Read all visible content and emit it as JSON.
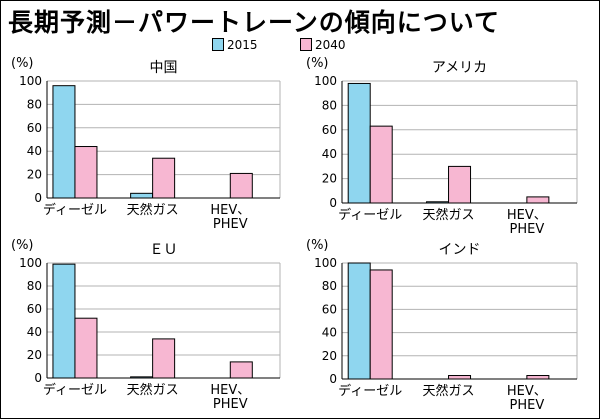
{
  "title": "長期予測－パワートレーンの傾向について",
  "legend": [
    {
      "label": "2015",
      "color": "#8fd6ef"
    },
    {
      "label": "2040",
      "color": "#f7b7d2"
    }
  ],
  "colors": {
    "s2015": "#8fd6ef",
    "s2040": "#f7b7d2",
    "grid": "#b3b3b3",
    "axis": "#000000"
  },
  "chart_data": [
    {
      "type": "bar",
      "title": "中国",
      "ylabel": "(%)",
      "ylim": [
        0,
        100
      ],
      "yticks": [
        0,
        20,
        40,
        60,
        80,
        100
      ],
      "categories": [
        "ディーゼル",
        "天然ガス",
        "HEV、PHEV"
      ],
      "category_lines": [
        [
          "ディーゼル"
        ],
        [
          "天然ガス"
        ],
        [
          "HEV、",
          "PHEV"
        ]
      ],
      "series": [
        {
          "name": "2015",
          "values": [
            96,
            4,
            0
          ]
        },
        {
          "name": "2040",
          "values": [
            44,
            34,
            21
          ]
        }
      ]
    },
    {
      "type": "bar",
      "title": "アメリカ",
      "ylabel": "(%)",
      "ylim": [
        0,
        100
      ],
      "yticks": [
        0,
        20,
        40,
        60,
        80,
        100
      ],
      "categories": [
        "ディーゼル",
        "天然ガス",
        "HEV、PHEV"
      ],
      "category_lines": [
        [
          "ディーゼル"
        ],
        [
          "天然ガス"
        ],
        [
          "HEV、",
          "PHEV"
        ]
      ],
      "series": [
        {
          "name": "2015",
          "values": [
            98,
            1,
            0
          ]
        },
        {
          "name": "2040",
          "values": [
            63,
            30,
            5
          ]
        }
      ]
    },
    {
      "type": "bar",
      "title": "ＥＵ",
      "ylabel": "(%)",
      "ylim": [
        0,
        100
      ],
      "yticks": [
        0,
        20,
        40,
        60,
        80,
        100
      ],
      "categories": [
        "ディーゼル",
        "天然ガス",
        "HEV、PHEV"
      ],
      "category_lines": [
        [
          "ディーゼル"
        ],
        [
          "天然ガス"
        ],
        [
          "HEV、",
          "PHEV"
        ]
      ],
      "series": [
        {
          "name": "2015",
          "values": [
            99,
            1,
            0
          ]
        },
        {
          "name": "2040",
          "values": [
            52,
            34,
            14
          ]
        }
      ]
    },
    {
      "type": "bar",
      "title": "インド",
      "ylabel": "(%)",
      "ylim": [
        0,
        100
      ],
      "yticks": [
        0,
        20,
        40,
        60,
        80,
        100
      ],
      "categories": [
        "ディーゼル",
        "天然ガス",
        "HEV、PHEV"
      ],
      "category_lines": [
        [
          "ディーゼル"
        ],
        [
          "天然ガス"
        ],
        [
          "HEV、",
          "PHEV"
        ]
      ],
      "series": [
        {
          "name": "2015",
          "values": [
            100,
            0,
            0
          ]
        },
        {
          "name": "2040",
          "values": [
            94,
            3,
            3
          ]
        }
      ]
    }
  ]
}
